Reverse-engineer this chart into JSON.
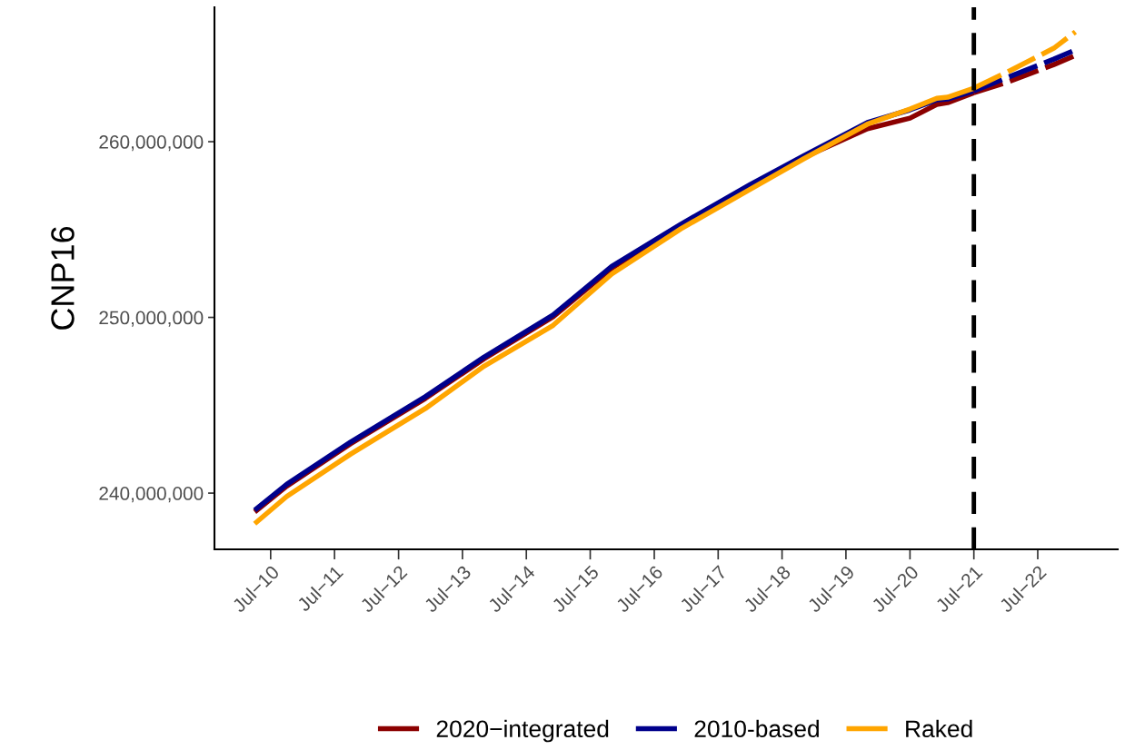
{
  "chart_data": {
    "type": "line",
    "ylabel": "CNP16",
    "legend": "bottom",
    "grid": false,
    "line_style": "solid",
    "marker": "none",
    "xlim": [
      "2009-08-14",
      "2023-10-01"
    ],
    "xticks": [
      {
        "value": "2010-07",
        "label": "Jul−10"
      },
      {
        "value": "2011-07",
        "label": "Jul−11"
      },
      {
        "value": "2012-07",
        "label": "Jul−12"
      },
      {
        "value": "2013-07",
        "label": "Jul−13"
      },
      {
        "value": "2014-07",
        "label": "Jul−14"
      },
      {
        "value": "2015-07",
        "label": "Jul−15"
      },
      {
        "value": "2016-07",
        "label": "Jul−16"
      },
      {
        "value": "2017-07",
        "label": "Jul−17"
      },
      {
        "value": "2018-07",
        "label": "Jul−18"
      },
      {
        "value": "2019-07",
        "label": "Jul−19"
      },
      {
        "value": "2020-07",
        "label": "Jul−20"
      },
      {
        "value": "2021-07",
        "label": "Jul−21"
      },
      {
        "value": "2022-07",
        "label": "Jul−22"
      }
    ],
    "ylim": [
      236800000,
      267650000
    ],
    "yticks": [
      {
        "value": 240000000,
        "label": "240,000,000"
      },
      {
        "value": 250000000,
        "label": "250,000,000"
      },
      {
        "value": 260000000,
        "label": "260,000,000"
      }
    ],
    "ref_lines": [
      {
        "axis": "x",
        "value": "2021-07",
        "label": null,
        "color": "#000000",
        "line_style": "dashed"
      }
    ],
    "series": [
      {
        "name": "2020−integrated",
        "color": "#8b0000",
        "x": [
          "2010-04",
          "2010-10",
          "2011-10",
          "2012-12",
          "2013-11",
          "2014-12",
          "2015-11",
          "2016-12",
          "2018-01",
          "2018-11",
          "2019-11",
          "2020-07",
          "2020-12",
          "2021-02",
          "2021-07"
        ],
        "values": [
          238930000,
          240400000,
          242810000,
          245390000,
          247640000,
          250040000,
          252800000,
          255210000,
          257460000,
          259100000,
          260740000,
          261340000,
          262120000,
          262220000,
          262790000
        ]
      },
      {
        "name": "2010-based",
        "color": "#00008b",
        "x": [
          "2010-04",
          "2010-10",
          "2011-10",
          "2012-12",
          "2013-11",
          "2014-12",
          "2015-11",
          "2016-12",
          "2018-01",
          "2018-11",
          "2019-11",
          "2020-07",
          "2020-12",
          "2021-02",
          "2021-07"
        ],
        "values": [
          239030000,
          240500000,
          242910000,
          245490000,
          247740000,
          250140000,
          252900000,
          255310000,
          257560000,
          259190000,
          261090000,
          261810000,
          262380000,
          262430000,
          262890000
        ]
      },
      {
        "name": "Raked",
        "color": "#ffa500",
        "x": [
          "2010-04",
          "2010-10",
          "2011-10",
          "2012-12",
          "2013-11",
          "2014-12",
          "2015-11",
          "2016-12",
          "2018-01",
          "2018-11",
          "2019-11",
          "2020-07",
          "2020-12",
          "2021-02",
          "2021-07"
        ],
        "values": [
          238260000,
          239810000,
          242220000,
          244810000,
          247220000,
          249550000,
          252470000,
          255050000,
          257300000,
          259020000,
          261000000,
          261860000,
          262470000,
          262530000,
          263050000
        ]
      },
      {
        "color": "#8b0000",
        "line_style": "dashed",
        "x": [
          "2021-07",
          "2022-01",
          "2022-10",
          "2023-02"
        ],
        "values": [
          262790000,
          263360000,
          264390000,
          264910000
        ]
      },
      {
        "color": "#00008b",
        "line_style": "dashed",
        "x": [
          "2021-07",
          "2022-01",
          "2022-10",
          "2023-02"
        ],
        "values": [
          262890000,
          263620000,
          264700000,
          265220000
        ]
      },
      {
        "color": "#ffa500",
        "line_style": "dashed",
        "x": [
          "2021-07",
          "2022-01",
          "2022-10",
          "2023-02"
        ],
        "values": [
          263050000,
          263930000,
          265320000,
          266250000
        ]
      }
    ]
  }
}
